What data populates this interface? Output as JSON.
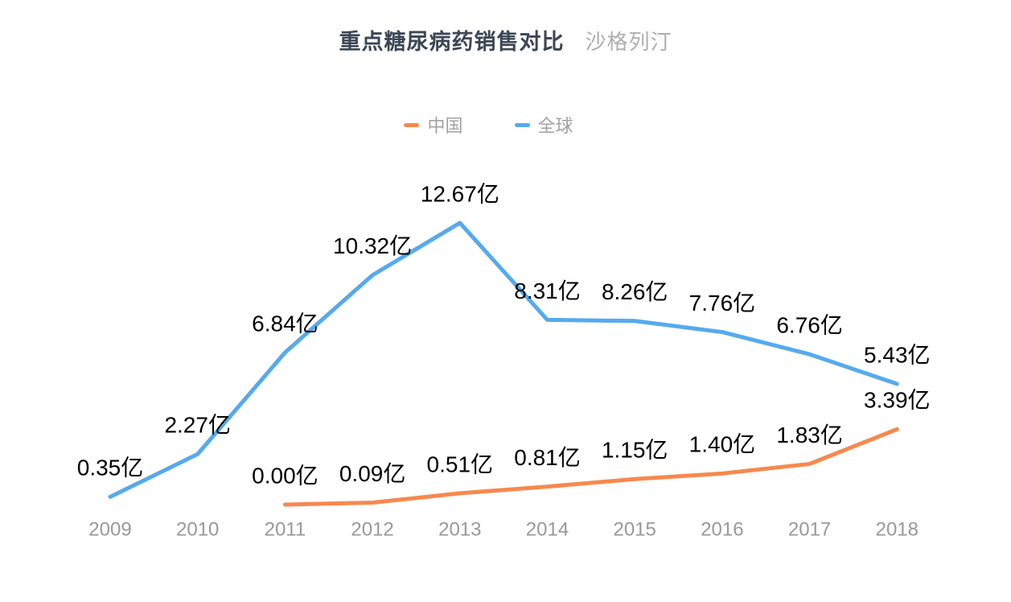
{
  "title": {
    "main": "重点糖尿病药销售对比",
    "sub": "沙格列汀"
  },
  "legend": {
    "items": [
      {
        "id": "china",
        "label": "中国",
        "color": "#f8884d"
      },
      {
        "id": "global",
        "label": "全球",
        "color": "#55aaee"
      }
    ]
  },
  "chart_data": {
    "type": "line",
    "title": "重点糖尿病药销售对比",
    "subtitle": "沙格列汀",
    "unit": "亿",
    "grid": false,
    "legend_position": "top-center",
    "x_axis_label_color": "#999999",
    "value_label_color": "#000000",
    "ylim": [
      0,
      14
    ],
    "categories": [
      "2009",
      "2010",
      "2011",
      "2012",
      "2013",
      "2014",
      "2015",
      "2016",
      "2017",
      "2018"
    ],
    "series": [
      {
        "id": "china",
        "name": "中国",
        "color": "#f8884d",
        "values": [
          null,
          null,
          0.0,
          0.09,
          0.51,
          0.81,
          1.15,
          1.4,
          1.83,
          3.39
        ],
        "labels": [
          null,
          null,
          "0.00亿",
          "0.09亿",
          "0.51亿",
          "0.81亿",
          "1.15亿",
          "1.40亿",
          "1.83亿",
          "3.39亿"
        ]
      },
      {
        "id": "global",
        "name": "全球",
        "color": "#55aaee",
        "values": [
          0.35,
          2.27,
          6.84,
          10.32,
          12.67,
          8.31,
          8.26,
          7.76,
          6.76,
          5.43
        ],
        "labels": [
          "0.35亿",
          "2.27亿",
          "6.84亿",
          "10.32亿",
          "12.67亿",
          "8.31亿",
          "8.26亿",
          "7.76亿",
          "6.76亿",
          "5.43亿"
        ]
      }
    ]
  }
}
